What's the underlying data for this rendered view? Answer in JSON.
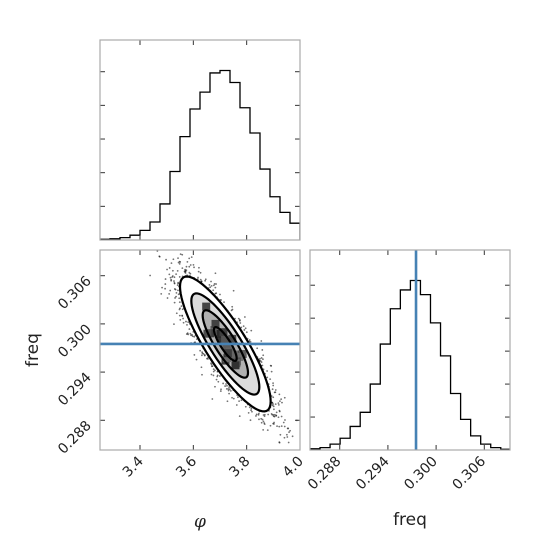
{
  "chart_data": {
    "type": "corner",
    "parameters": [
      {
        "name": "phi",
        "label": "φ",
        "range": [
          3.25,
          4.0
        ],
        "ticks": [
          3.4,
          3.6,
          3.8,
          4.0
        ],
        "tick_labels": [
          "3.4",
          "3.6",
          "3.8",
          "4.0"
        ]
      },
      {
        "name": "freq",
        "label": "freq",
        "range": [
          0.2843,
          0.3092
        ],
        "ticks": [
          0.288,
          0.294,
          0.3,
          0.306
        ],
        "tick_labels": [
          "0.288",
          "0.294",
          "0.300",
          "0.306"
        ]
      }
    ],
    "truth": {
      "freq": 0.2975
    },
    "truth_color": "#4682b4",
    "histogram_phi": {
      "bin_edges": [
        3.25,
        3.2875,
        3.325,
        3.3625,
        3.4,
        3.4375,
        3.475,
        3.5125,
        3.55,
        3.5875,
        3.625,
        3.6625,
        3.7,
        3.7375,
        3.775,
        3.8125,
        3.85,
        3.8875,
        3.925,
        3.9625,
        4.0
      ],
      "counts": [
        0.3,
        0.5,
        1.0,
        2.0,
        4.0,
        7.5,
        15.0,
        28.5,
        43.0,
        54.5,
        61.5,
        69.5,
        70.5,
        65.5,
        55.0,
        44.5,
        29.5,
        18.0,
        11.5,
        7.0
      ]
    },
    "histogram_freq": {
      "bin_edges": [
        0.2843,
        0.28555,
        0.2868,
        0.28805,
        0.2893,
        0.29055,
        0.2918,
        0.29305,
        0.2943,
        0.29555,
        0.2968,
        0.29805,
        0.2993,
        0.30055,
        0.3018,
        0.30305,
        0.3043,
        0.30555,
        0.3068,
        0.30805,
        0.3093
      ],
      "counts": [
        0.5,
        1.0,
        2.5,
        5.0,
        10.0,
        16.0,
        28.0,
        45.0,
        60.0,
        68.0,
        72.0,
        66.0,
        54.0,
        40.0,
        24.0,
        13.0,
        6.0,
        2.5,
        1.0,
        0.3
      ]
    },
    "joint": {
      "mean": [
        3.72,
        0.2975
      ],
      "std": [
        0.085,
        0.0042
      ],
      "correlation": -0.85,
      "contour_levels_sigma": [
        0.5,
        1.0,
        1.5,
        2.0
      ]
    },
    "grid": false,
    "legend": "none"
  }
}
